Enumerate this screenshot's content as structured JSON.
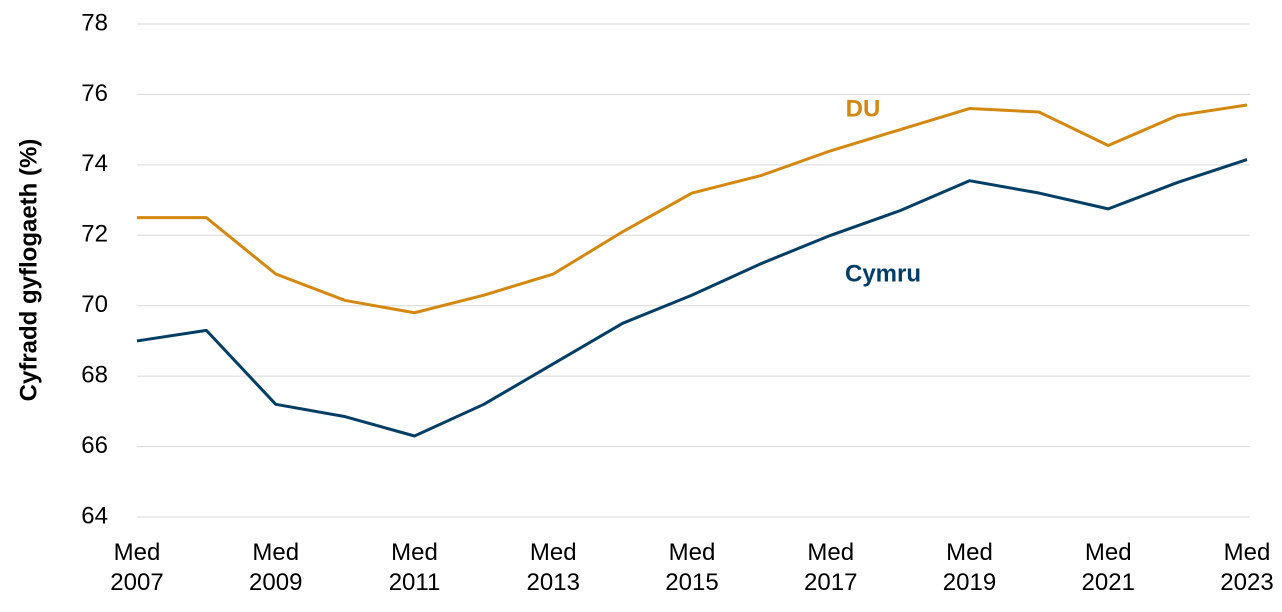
{
  "chart_data": {
    "type": "line",
    "y_label": "Cyfradd gyflogaeth (%)",
    "categories": [
      "Med 2007",
      null,
      "Med 2009",
      null,
      "Med 2011",
      null,
      "Med 2013",
      null,
      "Med 2015",
      null,
      "Med 2017",
      null,
      "Med 2019",
      null,
      "Med 2021",
      null,
      "Med 2023"
    ],
    "series": [
      {
        "name": "DU",
        "color": "#d4880f",
        "values": [
          72.5,
          72.5,
          70.9,
          70.15,
          69.8,
          70.3,
          70.9,
          72.1,
          73.2,
          73.7,
          74.4,
          75.0,
          75.6,
          75.5,
          74.55,
          75.4,
          75.7
        ]
      },
      {
        "name": "Cymru",
        "color": "#003e66",
        "values": [
          69.0,
          69.3,
          67.2,
          66.85,
          66.3,
          67.2,
          68.35,
          69.5,
          70.3,
          71.2,
          72.0,
          72.7,
          73.55,
          73.2,
          72.75,
          73.5,
          74.15
        ]
      }
    ],
    "ylim": [
      64,
      78
    ],
    "yticks": [
      64,
      66,
      68,
      70,
      72,
      74,
      76,
      78
    ],
    "grid": true
  }
}
